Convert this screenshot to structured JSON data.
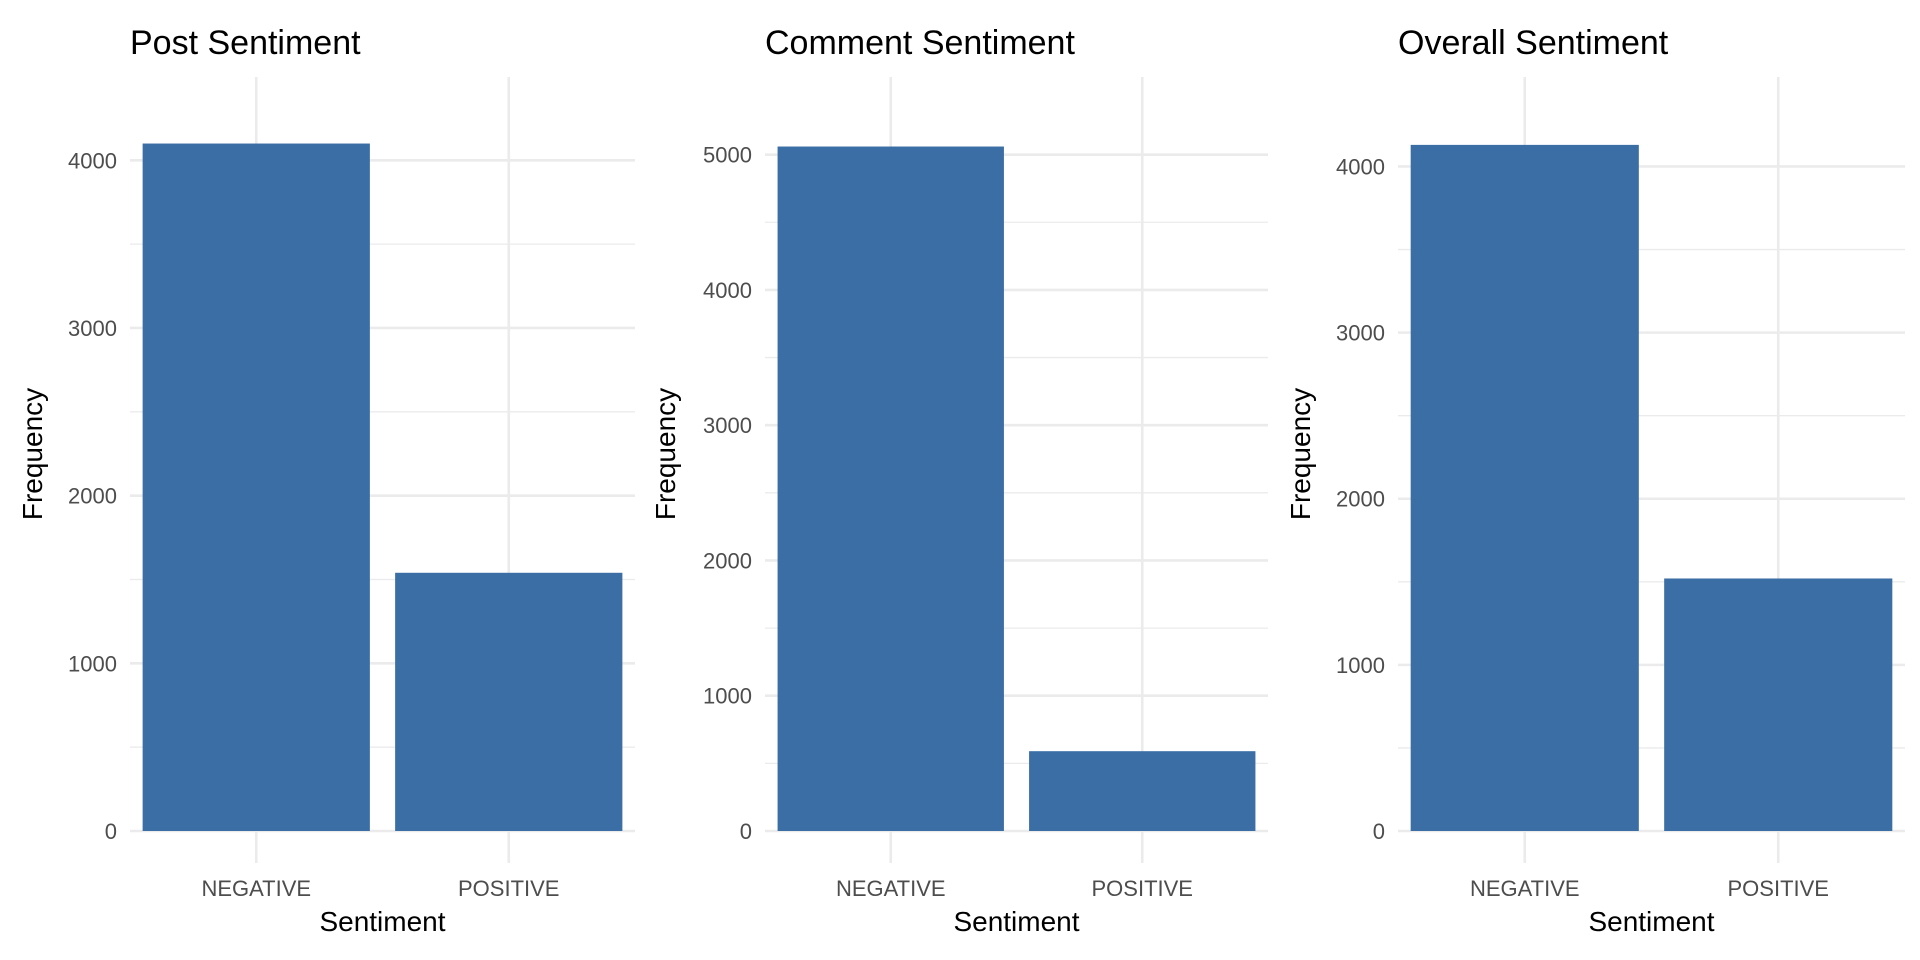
{
  "bar_color": "#3a6ea5",
  "grid_color": "#ebebeb",
  "chart_data": [
    {
      "type": "bar",
      "title": "Post Sentiment",
      "xlabel": "Sentiment",
      "ylabel": "Frequency",
      "categories": [
        "NEGATIVE",
        "POSITIVE"
      ],
      "values": [
        4100,
        1540
      ],
      "ylim": [
        0,
        4300
      ],
      "yticks": [
        0,
        1000,
        2000,
        3000,
        4000
      ],
      "grid": true,
      "legend": "none"
    },
    {
      "type": "bar",
      "title": "Comment Sentiment",
      "xlabel": "Sentiment",
      "ylabel": "Frequency",
      "categories": [
        "NEGATIVE",
        "POSITIVE"
      ],
      "values": [
        5060,
        590
      ],
      "ylim": [
        0,
        5330
      ],
      "yticks": [
        0,
        1000,
        2000,
        3000,
        4000,
        5000
      ],
      "grid": true,
      "legend": "none"
    },
    {
      "type": "bar",
      "title": "Overall Sentiment",
      "xlabel": "Sentiment",
      "ylabel": "Frequency",
      "categories": [
        "NEGATIVE",
        "POSITIVE"
      ],
      "values": [
        4130,
        1520
      ],
      "ylim": [
        0,
        4340
      ],
      "yticks": [
        0,
        1000,
        2000,
        3000,
        4000
      ],
      "grid": true,
      "legend": "none"
    }
  ]
}
